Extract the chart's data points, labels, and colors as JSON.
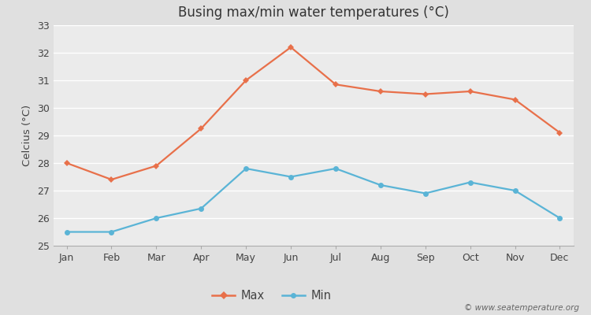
{
  "months": [
    "Jan",
    "Feb",
    "Mar",
    "Apr",
    "May",
    "Jun",
    "Jul",
    "Aug",
    "Sep",
    "Oct",
    "Nov",
    "Dec"
  ],
  "max_temps": [
    28.0,
    27.4,
    27.9,
    29.25,
    31.0,
    32.2,
    30.85,
    30.6,
    30.5,
    30.6,
    30.3,
    29.1
  ],
  "min_temps": [
    25.5,
    25.5,
    26.0,
    26.35,
    27.8,
    27.5,
    27.8,
    27.2,
    26.9,
    27.3,
    27.0,
    26.0
  ],
  "max_color": "#e8704a",
  "min_color": "#5ab4d6",
  "title": "Busing max/min water temperatures (°C)",
  "ylabel": "Celcius (°C)",
  "ylim": [
    25,
    33
  ],
  "yticks": [
    25,
    26,
    27,
    28,
    29,
    30,
    31,
    32,
    33
  ],
  "outer_bg": "#e0e0e0",
  "plot_bg_color": "#ebebeb",
  "grid_color": "#ffffff",
  "legend_max": "Max",
  "legend_min": "Min",
  "watermark": "© www.seatemperature.org",
  "title_fontsize": 12,
  "label_fontsize": 9.5,
  "tick_fontsize": 9
}
